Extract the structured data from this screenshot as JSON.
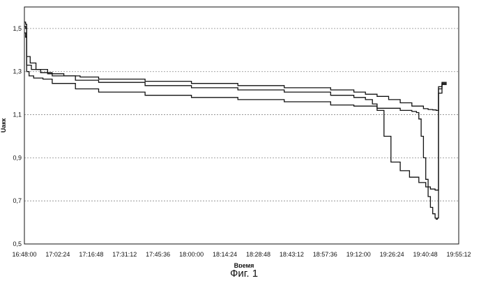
{
  "caption": "Фиг. 1",
  "chart_data": {
    "type": "line",
    "xlabel": "Время",
    "ylabel": "Uакк",
    "ylim": [
      0.5,
      1.6
    ],
    "yticks": [
      {
        "value": 0.5,
        "label": "0,5"
      },
      {
        "value": 0.7,
        "label": "0,7"
      },
      {
        "value": 0.9,
        "label": "0,9"
      },
      {
        "value": 1.1,
        "label": "1,1"
      },
      {
        "value": 1.3,
        "label": "1,3"
      },
      {
        "value": 1.5,
        "label": "1,5"
      }
    ],
    "xlim": [
      "16:48:00",
      "19:55:12"
    ],
    "xticks": [
      "16:48:00",
      "17:02:24",
      "17:16:48",
      "17:31:12",
      "17:45:36",
      "18:00:00",
      "18:14:24",
      "18:28:48",
      "18:43:12",
      "18:57:36",
      "19:12:00",
      "19:26:24",
      "19:40:48",
      "19:55:12"
    ],
    "grid": "horizontal dashed",
    "series": [
      {
        "x": [
          "16:48:00",
          "16:48:30",
          "16:49:00",
          "16:50:30",
          "16:53:00",
          "16:58:00",
          "17:05:00",
          "17:12:00",
          "17:20:00",
          "17:40:00",
          "18:00:00",
          "18:20:00",
          "18:40:00",
          "19:00:00",
          "19:10:00",
          "19:15:00",
          "19:20:00",
          "19:25:00",
          "19:30:00",
          "19:35:00",
          "19:40:00",
          "19:42:00",
          "19:44:00",
          "19:45:30",
          "19:46:00",
          "19:46:30",
          "19:48:00",
          "19:50:00"
        ],
        "values": [
          1.53,
          1.52,
          1.37,
          1.34,
          1.31,
          1.29,
          1.28,
          1.275,
          1.265,
          1.255,
          1.245,
          1.235,
          1.225,
          1.215,
          1.205,
          1.195,
          1.185,
          1.17,
          1.155,
          1.14,
          1.128,
          1.124,
          1.122,
          1.12,
          1.12,
          1.22,
          1.24,
          1.24
        ]
      },
      {
        "x": [
          "16:48:00",
          "16:48:30",
          "16:49:00",
          "16:51:00",
          "16:55:00",
          "17:00:00",
          "17:10:00",
          "17:20:00",
          "17:40:00",
          "18:00:00",
          "18:20:00",
          "18:40:00",
          "19:00:00",
          "19:10:00",
          "19:15:00",
          "19:18:00",
          "19:20:00",
          "19:23:00",
          "19:26:00",
          "19:30:00",
          "19:34:00",
          "19:38:00",
          "19:41:00",
          "19:43:00",
          "19:45:00",
          "19:45:30",
          "19:46:00",
          "19:46:30",
          "19:48:00",
          "19:50:00"
        ],
        "values": [
          1.51,
          1.5,
          1.33,
          1.31,
          1.295,
          1.28,
          1.26,
          1.25,
          1.235,
          1.225,
          1.215,
          1.205,
          1.19,
          1.18,
          1.17,
          1.15,
          1.12,
          1.0,
          0.88,
          0.84,
          0.81,
          0.785,
          0.765,
          0.755,
          0.75,
          0.75,
          0.75,
          1.23,
          1.245,
          1.245
        ]
      },
      {
        "x": [
          "16:48:00",
          "16:48:30",
          "16:49:00",
          "16:50:00",
          "16:52:00",
          "16:56:00",
          "17:00:00",
          "17:10:00",
          "17:20:00",
          "17:40:00",
          "18:00:00",
          "18:20:00",
          "18:40:00",
          "19:00:00",
          "19:10:00",
          "19:20:00",
          "19:30:00",
          "19:35:00",
          "19:37:00",
          "19:38:00",
          "19:39:00",
          "19:40:00",
          "19:41:00",
          "19:42:00",
          "19:43:00",
          "19:44:00",
          "19:45:00",
          "19:45:30",
          "19:46:00",
          "19:46:30",
          "19:48:00",
          "19:50:00"
        ],
        "values": [
          1.48,
          1.46,
          1.3,
          1.28,
          1.27,
          1.265,
          1.245,
          1.22,
          1.205,
          1.19,
          1.18,
          1.17,
          1.16,
          1.145,
          1.14,
          1.13,
          1.12,
          1.115,
          1.11,
          1.08,
          1.0,
          0.9,
          0.8,
          0.72,
          0.67,
          0.64,
          0.62,
          0.615,
          0.62,
          1.2,
          1.25,
          1.25
        ]
      }
    ]
  }
}
